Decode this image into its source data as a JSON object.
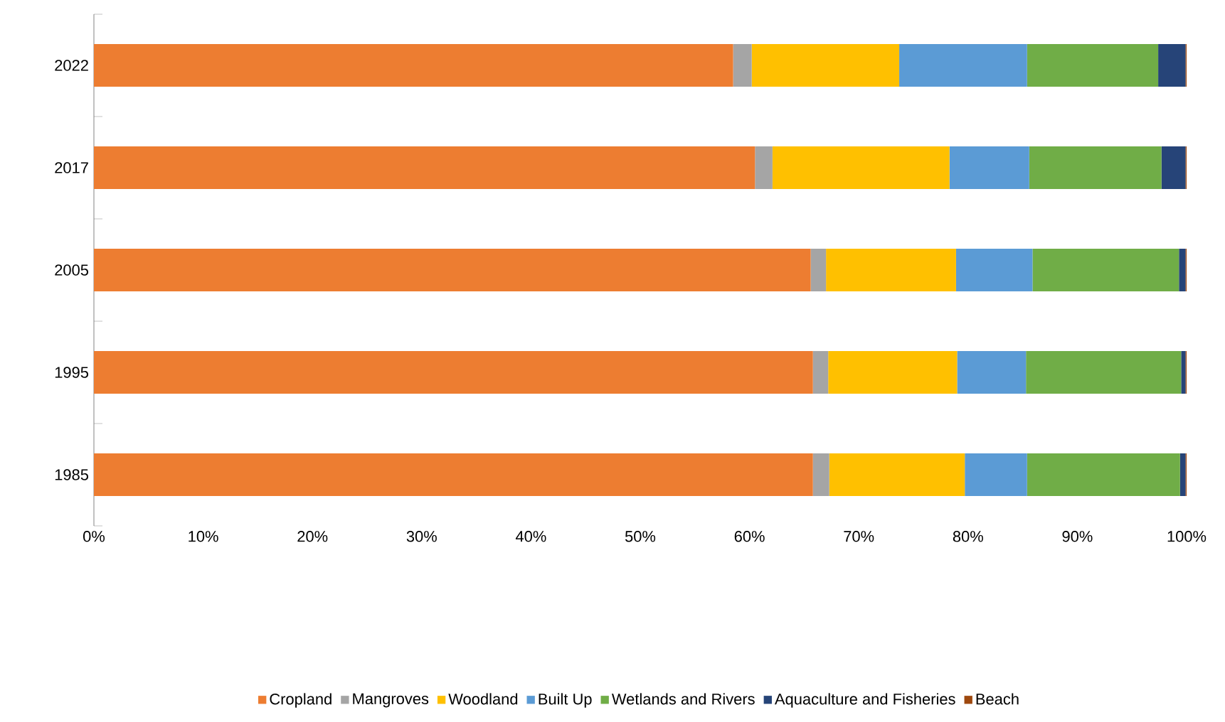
{
  "chart_data": {
    "type": "bar",
    "orientation": "horizontal",
    "stacked": true,
    "categories": [
      "2022",
      "2017",
      "2005",
      "1995",
      "1985"
    ],
    "series": [
      {
        "name": "Cropland",
        "color": "#ed7d31",
        "values": [
          58.5,
          60.5,
          65.6,
          65.8,
          65.8
        ]
      },
      {
        "name": "Mangroves",
        "color": "#a5a5a5",
        "values": [
          1.7,
          1.6,
          1.4,
          1.4,
          1.5
        ]
      },
      {
        "name": "Woodland",
        "color": "#ffc000",
        "values": [
          13.5,
          16.2,
          11.9,
          11.8,
          12.4
        ]
      },
      {
        "name": "Built Up",
        "color": "#5b9bd5",
        "values": [
          11.7,
          7.3,
          7.0,
          6.3,
          5.7
        ]
      },
      {
        "name": "Wetlands and Rivers",
        "color": "#70ad47",
        "values": [
          12.0,
          12.1,
          13.4,
          14.2,
          14.0
        ]
      },
      {
        "name": "Aquaculture and Fisheries",
        "color": "#264478",
        "values": [
          2.5,
          2.2,
          0.6,
          0.4,
          0.5
        ]
      },
      {
        "name": "Beach",
        "color": "#9e480e",
        "values": [
          0.1,
          0.1,
          0.1,
          0.1,
          0.1
        ]
      }
    ],
    "xlim": [
      0,
      100
    ],
    "xticks": [
      {
        "value": 0,
        "label": "0%"
      },
      {
        "value": 10,
        "label": "10%"
      },
      {
        "value": 20,
        "label": "20%"
      },
      {
        "value": 30,
        "label": "30%"
      },
      {
        "value": 40,
        "label": "40%"
      },
      {
        "value": 50,
        "label": "50%"
      },
      {
        "value": 60,
        "label": "60%"
      },
      {
        "value": 70,
        "label": "70%"
      },
      {
        "value": 80,
        "label": "80%"
      },
      {
        "value": 90,
        "label": "90%"
      },
      {
        "value": 100,
        "label": "100%"
      }
    ],
    "grid": false,
    "legend": "bottom"
  }
}
